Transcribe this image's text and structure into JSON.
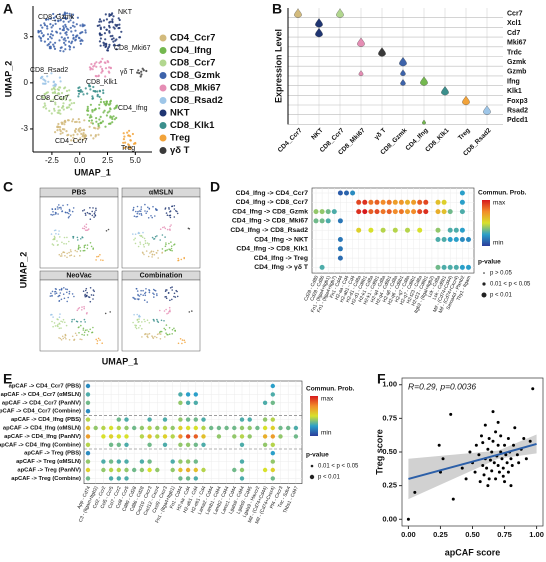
{
  "chart_data": [
    {
      "type": "umap",
      "panel_label": "A",
      "xlabel": "UMAP_1",
      "ylabel": "UMAP_2",
      "xlim": [
        -4.2,
        6.5
      ],
      "ylim": [
        -4.5,
        5
      ],
      "xticks": [
        -2.5,
        {
          "value": 0,
          "label": "0.0"
        },
        2.5,
        {
          "value": 5,
          "label": "5.0"
        }
      ],
      "yticks": [
        -3,
        0,
        3
      ],
      "clusters": [
        {
          "name": "CD4_Ccr7",
          "color": "#d2ba7c"
        },
        {
          "name": "CD4_Ifng",
          "color": "#74b84f"
        },
        {
          "name": "CD8_Ccr7",
          "color": "#b2d78f"
        },
        {
          "name": "CD8_Gzmk",
          "color": "#3d63aa"
        },
        {
          "name": "CD8_Mki67",
          "color": "#e58db4"
        },
        {
          "name": "CD8_Rsad2",
          "color": "#9ec6e8"
        },
        {
          "name": "NKT",
          "color": "#1f3572"
        },
        {
          "name": "CD8_Klk1",
          "color": "#3b8f8c"
        },
        {
          "name": "Treg",
          "color": "#f2a33a"
        },
        {
          "name": "γδ T",
          "color": "#3a3a3a"
        }
      ]
    },
    {
      "type": "violin",
      "panel_label": "B",
      "ylabel": "Expression Level",
      "genes": [
        "Ccr7",
        "Xcl1",
        "Cd7",
        "Mki67",
        "Trdc",
        "Gzmk",
        "Gzmb",
        "Ifng",
        "Klk1",
        "Foxp3",
        "Rsad2",
        "Pdcd1"
      ],
      "clusters": [
        "CD4_Ccr7",
        "NKT",
        "CD8_Ccr7",
        "CD8_Mki67",
        "γδ T",
        "CD8_Gzmk",
        "CD4_Ifng",
        "CD8_Klk1",
        "Treg",
        "CD8_Rsad2"
      ]
    },
    {
      "type": "umap_grid",
      "panel_label": "C",
      "xlabel": "UMAP_1",
      "ylabel": "UMAP_2",
      "titles": [
        "PBS",
        "αMSLN",
        "NeoVac",
        "Combination"
      ]
    },
    {
      "type": "dotplot",
      "panel_label": "D",
      "legend_title": "Commun. Prob.",
      "max_label": "max",
      "min_label": "min",
      "pvalue_title": "p-value",
      "pvalue_labels": [
        "p > 0.05",
        "0.01 < p < 0.05",
        "p < 0.01"
      ],
      "clim": [
        0,
        1
      ],
      "colormap": [
        "#2b3c9b",
        "#2a9fc9",
        "#d8e12b",
        "#f28c2a",
        "#d7191c"
      ],
      "columns": [
        "Cd28 - Cd80",
        "Cd28 - Cd86",
        "Fn1 - (Itga4+Itgb1)",
        "Fn1 - (Itga4+Itgb7)",
        "Fn1 - Cd44",
        "H2-aa - Cd4",
        "H2-ab1 - Cd4",
        "H2-d1 - Cd8a",
        "H2-d1 - Cd8b1",
        "H2-k1 - Cd8a",
        "H2-k1 - Cd8b1",
        "H2-q4 - Cd8a",
        "H2-q4 - Cd8b1",
        "H2-q6 - Cd8a",
        "H2-q6 - Cd8b1",
        "H2-q7 - Cd8a",
        "H2-q7 - Cd8b1",
        "H2-t23 - Cd8a",
        "H2-t23 - Cd8b1",
        "Itgb2 - (Itgal+Itgb2)",
        "Lck - Cd8a",
        "Lck - Cd8b1",
        "Mif - (Cd74+Cd44)",
        "Mif - (Cd74+Cxcr4)",
        "Sema4d - Plxnb2",
        "Thy1 - Itgam"
      ],
      "rows": [
        {
          "label": "CD4_Ifng -> CD4_Ccr7",
          "cols": [
            4,
            5,
            6,
            24
          ],
          "probs": [
            0.08,
            0.1,
            0.2,
            0.25
          ]
        },
        {
          "label": "CD4_Ifng -> CD8_Ccr7",
          "cols": [
            7,
            8,
            9,
            10,
            11,
            12,
            13,
            14,
            15,
            16,
            17,
            18,
            20,
            21,
            24
          ],
          "probs": [
            0.9,
            0.95,
            0.8,
            0.85,
            0.75,
            0.8,
            0.7,
            0.72,
            0.65,
            0.7,
            0.85,
            0.9,
            0.6,
            0.55,
            0.25
          ]
        },
        {
          "label": "CD4_Ifng -> CD8_Gzmk",
          "cols": [
            0,
            1,
            2,
            3,
            7,
            8,
            9,
            10,
            11,
            12,
            13,
            14,
            15,
            16,
            17,
            18,
            20,
            21,
            22,
            24
          ],
          "probs": [
            0.4,
            0.4,
            0.35,
            0.3,
            0.95,
            1,
            0.85,
            0.9,
            0.8,
            0.85,
            0.75,
            0.8,
            0.7,
            0.75,
            0.9,
            0.95,
            0.65,
            0.6,
            0.35,
            0.3
          ]
        },
        {
          "label": "CD4_Ifng -> CD8_Mki67",
          "cols": [
            0,
            1,
            2,
            4
          ],
          "probs": [
            0.35,
            0.35,
            0.3,
            0.15
          ]
        },
        {
          "label": "CD4_Ifng -> CD8_Rsad2",
          "cols": [
            7,
            9,
            11,
            13,
            15,
            17,
            20,
            22,
            23,
            24
          ],
          "probs": [
            0.55,
            0.5,
            0.45,
            0.45,
            0.45,
            0.5,
            0.4,
            0.3,
            0.3,
            0.25
          ]
        },
        {
          "label": "CD4_Ifng -> NKT",
          "cols": [
            4,
            20,
            21,
            22,
            23,
            24,
            25
          ],
          "probs": [
            0.15,
            0.3,
            0.3,
            0.25,
            0.25,
            0.2,
            0.2
          ]
        },
        {
          "label": "CD4_Ifng -> CD8_Klk1",
          "cols": [
            4
          ],
          "probs": [
            0.15
          ]
        },
        {
          "label": "CD4_Ifng -> Treg",
          "cols": [
            4
          ],
          "probs": [
            0.12
          ]
        },
        {
          "label": "CD4_Ifng -> γδ T",
          "cols": [
            1,
            20,
            21,
            22,
            23,
            24,
            25
          ],
          "probs": [
            0.3,
            0.35,
            0.3,
            0.3,
            0.3,
            0.25,
            0.25
          ]
        }
      ]
    },
    {
      "type": "dotplot",
      "panel_label": "E",
      "legend_title": "Commun. Prob.",
      "max_label": "max",
      "min_label": "min",
      "pvalue_title": "p-value",
      "pvalue_labels": [
        "0.01 < p < 0.05",
        "p < 0.01"
      ],
      "clim": [
        0,
        1
      ],
      "colormap": [
        "#2b3c9b",
        "#2a9fc9",
        "#d8e12b",
        "#f28c2a",
        "#d7191c"
      ],
      "columns": [
        "App - Cd74",
        "C3 - (Itgam+Itgb2)",
        "Ccl2 - Ccr2",
        "Ccl5 - Ccr5",
        "Ccl7 - Ccr2",
        "Ccl8 - Ccr5",
        "Cd80 - Cd28",
        "Cd86 - Cd28",
        "Cxcl10 - Cxcr3",
        "Cxcl12 - Cxcr4",
        "Cxcl9 - Cxcr3",
        "Fn1 - (Itga4+Itgb1)",
        "Fn1 - Cd44",
        "H2-aa - Cd4",
        "H2-ab1 - Cd4",
        "H2-eb1 - Cd4",
        "Lama2 - Cd44",
        "Lamb1 - Cd44",
        "Lamb2 - Cd44",
        "Lamc1 - Cd44",
        "Lgals9 - Cd44",
        "Lgals9 - Cd45",
        "Lgals9 - Havcr2",
        "Mif - (Cd74+Cd44)",
        "Mif - (Cd74+Cxcr4)",
        "Pf4 - Cxcr3",
        "Tnc - Sdc4",
        "Thbs1 - Cd47"
      ],
      "rows": [
        {
          "label": "apCAF -> CD4_Ccr7 (PBS)",
          "color": "#e8746c",
          "cols": [
            0,
            24
          ],
          "probs": [
            0.2,
            0.25
          ]
        },
        {
          "label": "apCAF -> CD4_Ccr7 (αMSLN)",
          "color": "#1fa9a3",
          "cols": [
            0,
            12,
            13,
            14,
            24
          ],
          "probs": [
            0.3,
            0.3,
            0.25,
            0.25,
            0.3
          ]
        },
        {
          "label": "apCAF -> CD4_Ccr7 (PanNV)",
          "color": "#7cae00",
          "cols": [
            0,
            12,
            13,
            14,
            23,
            24
          ],
          "probs": [
            0.35,
            0.4,
            0.3,
            0.3,
            0.3,
            0.35
          ]
        },
        {
          "label": "apCAF -> CD4_Ccr7 (Combine)",
          "color": "#9b7fd0",
          "cols": [
            0
          ],
          "probs": [
            0.2
          ]
        },
        {
          "label": "apCAF -> CD4_Ifng (PBS)",
          "color": "#e8746c",
          "cols": [
            0,
            4,
            5,
            8,
            10,
            12,
            13,
            14,
            15,
            20,
            21,
            23,
            24
          ],
          "probs": [
            0.45,
            0.35,
            0.3,
            0.3,
            0.3,
            0.4,
            0.35,
            0.35,
            0.3,
            0.3,
            0.3,
            0.4,
            0.45
          ]
        },
        {
          "label": "apCAF -> CD4_Ifng (αMSLN)",
          "color": "#1fa9a3",
          "cols": [
            0,
            1,
            2,
            3,
            4,
            5,
            6,
            7,
            8,
            9,
            10,
            11,
            12,
            13,
            14,
            15,
            16,
            17,
            18,
            19,
            20,
            21,
            22,
            23,
            24,
            25,
            26,
            27
          ],
          "probs": [
            0.6,
            0.4,
            0.45,
            0.5,
            0.45,
            0.4,
            0.35,
            0.4,
            0.45,
            0.4,
            0.45,
            0.4,
            0.55,
            0.5,
            0.5,
            0.45,
            0.35,
            0.35,
            0.35,
            0.35,
            0.4,
            0.4,
            0.35,
            0.5,
            0.55,
            0.35,
            0.35,
            0.3
          ]
        },
        {
          "label": "apCAF -> CD4_Ifng (PanNV)",
          "color": "#7cae00",
          "cols": [
            0,
            2,
            3,
            4,
            5,
            7,
            8,
            9,
            10,
            11,
            12,
            13,
            14,
            15,
            17,
            19,
            20,
            21,
            23,
            24,
            25,
            27
          ],
          "probs": [
            0.7,
            0.5,
            0.55,
            0.5,
            0.5,
            0.45,
            0.6,
            0.45,
            0.55,
            0.45,
            0.75,
            0.9,
            0.85,
            0.6,
            0.4,
            0.4,
            0.45,
            0.4,
            0.65,
            0.7,
            0.4,
            0.35
          ]
        },
        {
          "label": "apCAF -> CD4_Ifng (Combine)",
          "color": "#9b7fd0",
          "cols": [
            0,
            3,
            4,
            5,
            8,
            10,
            12,
            13,
            14,
            15,
            20,
            23,
            24
          ],
          "probs": [
            0.45,
            0.35,
            0.35,
            0.3,
            0.35,
            0.3,
            0.4,
            0.4,
            0.35,
            0.3,
            0.3,
            0.4,
            0.45
          ]
        },
        {
          "label": "apCAF -> Treg (PBS)",
          "color": "#e8746c",
          "cols": [
            0,
            24
          ],
          "probs": [
            0.2,
            0.25
          ]
        },
        {
          "label": "apCAF -> Treg (αMSLN)",
          "color": "#1fa9a3",
          "cols": [
            0,
            2,
            3,
            4,
            5,
            7,
            8,
            11,
            12,
            13,
            14,
            20,
            24
          ],
          "probs": [
            0.4,
            0.3,
            0.35,
            0.3,
            0.3,
            0.3,
            0.35,
            0.3,
            0.4,
            0.4,
            0.35,
            0.3,
            0.4
          ]
        },
        {
          "label": "apCAF -> Treg (PanNV)",
          "color": "#7cae00",
          "cols": [
            0,
            2,
            3,
            4,
            5,
            6,
            7,
            8,
            9,
            11,
            12,
            13,
            14,
            15,
            19,
            20,
            23,
            24
          ],
          "probs": [
            0.55,
            0.4,
            0.45,
            0.45,
            0.4,
            0.35,
            0.4,
            0.5,
            0.4,
            0.4,
            0.6,
            0.65,
            0.6,
            0.45,
            0.35,
            0.4,
            0.5,
            0.55
          ]
        },
        {
          "label": "apCAF -> Treg (Combine)",
          "color": "#9b7fd0",
          "cols": [
            0,
            3,
            4,
            5,
            12,
            13,
            14,
            20,
            24
          ],
          "probs": [
            0.35,
            0.3,
            0.3,
            0.3,
            0.35,
            0.35,
            0.3,
            0.3,
            0.35
          ]
        }
      ]
    },
    {
      "type": "scatter",
      "panel_label": "F",
      "xlabel": "apCAF score",
      "ylabel": "Treg score",
      "annotation": "R=0.29, p=0.0036",
      "xlim": [
        -0.05,
        1.05
      ],
      "ylim": [
        -0.05,
        1.05
      ],
      "xticks": [
        {
          "value": 0,
          "label": "0.00"
        },
        0.25,
        {
          "value": 0.5,
          "label": "0.50"
        },
        0.75,
        {
          "value": 1,
          "label": "1.00"
        }
      ],
      "yticks": [
        {
          "value": 0,
          "label": "0.00"
        },
        0.25,
        {
          "value": 0.5,
          "label": "0.50"
        },
        0.75,
        {
          "value": 1,
          "label": "1.00"
        }
      ],
      "color": "#000000",
      "fit_color": "#2c5fa8",
      "x": [
        0.0,
        0.05,
        0.24,
        0.25,
        0.27,
        0.33,
        0.35,
        0.42,
        0.45,
        0.48,
        0.5,
        0.52,
        0.53,
        0.55,
        0.56,
        0.57,
        0.58,
        0.59,
        0.6,
        0.6,
        0.61,
        0.62,
        0.63,
        0.63,
        0.64,
        0.65,
        0.65,
        0.66,
        0.67,
        0.68,
        0.68,
        0.69,
        0.7,
        0.7,
        0.71,
        0.72,
        0.72,
        0.73,
        0.74,
        0.75,
        0.75,
        0.76,
        0.77,
        0.78,
        0.78,
        0.79,
        0.8,
        0.81,
        0.82,
        0.83,
        0.85,
        0.86,
        0.88,
        0.9,
        0.92,
        0.95,
        0.97,
        0.62,
        0.7,
        0.74,
        0.66,
        0.58,
        0.8
      ],
      "y": [
        0.0,
        0.2,
        0.55,
        0.35,
        0.45,
        0.78,
        0.15,
        0.38,
        0.3,
        0.5,
        0.42,
        0.35,
        0.55,
        0.48,
        0.28,
        0.62,
        0.4,
        0.33,
        0.45,
        0.7,
        0.38,
        0.52,
        0.3,
        0.6,
        0.44,
        0.36,
        0.5,
        0.58,
        0.42,
        0.3,
        0.65,
        0.47,
        0.4,
        0.55,
        0.35,
        0.5,
        0.62,
        0.45,
        0.38,
        0.28,
        0.55,
        0.48,
        0.42,
        0.6,
        0.35,
        0.5,
        0.45,
        0.4,
        0.55,
        0.68,
        0.48,
        0.42,
        0.52,
        0.6,
        0.45,
        0.58,
        0.97,
        0.25,
        0.72,
        0.32,
        0.8,
        0.57,
        0.25
      ],
      "fit": {
        "x": [
          0,
          0.7,
          1
        ],
        "y": [
          0.3,
          0.48,
          0.56
        ],
        "lower": [
          0.15,
          0.45,
          0.49
        ],
        "upper": [
          0.45,
          0.51,
          0.63
        ]
      }
    }
  ]
}
